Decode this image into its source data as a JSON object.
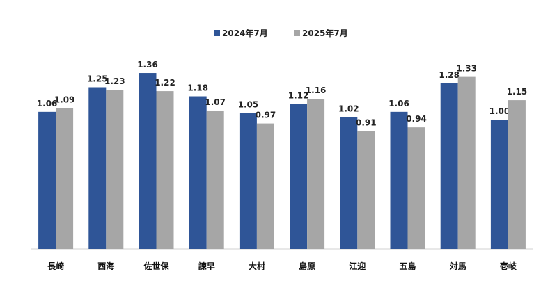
{
  "chart_data": {
    "type": "bar",
    "title": "",
    "xlabel": "",
    "ylabel": "",
    "ylim": [
      0,
      1.4
    ],
    "grid": false,
    "legend_position": "top-center",
    "categories": [
      "長崎",
      "西海",
      "佐世保",
      "諫早",
      "大村",
      "島原",
      "江迎",
      "五島",
      "対馬",
      "壱岐"
    ],
    "series": [
      {
        "name": "2024年7月",
        "color": "#2f5597",
        "values": [
          1.06,
          1.25,
          1.36,
          1.18,
          1.05,
          1.12,
          1.02,
          1.06,
          1.28,
          1.0
        ],
        "labels": [
          "1.06",
          "1.25",
          "1.36",
          "1.18",
          "1.05",
          "1.12",
          "1.02",
          "1.06",
          "1.28",
          "1.00"
        ]
      },
      {
        "name": "2025年7月",
        "color": "#a6a6a6",
        "values": [
          1.09,
          1.23,
          1.22,
          1.07,
          0.97,
          1.16,
          0.91,
          0.94,
          1.33,
          1.15
        ],
        "labels": [
          "1.09",
          "1.23",
          "1.22",
          "1.07",
          "0.97",
          "1.16",
          "0.91",
          "0.94",
          "1.33",
          "1.15"
        ]
      }
    ]
  }
}
